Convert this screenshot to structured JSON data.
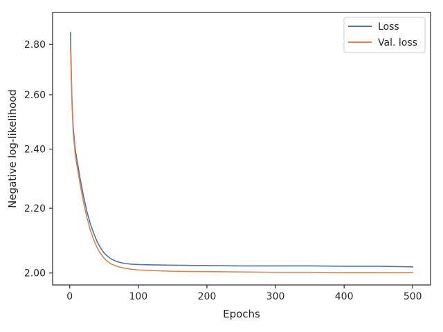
{
  "chart_data": {
    "type": "line",
    "title": "",
    "xlabel": "Epochs",
    "ylabel": "Negative log-likelihood",
    "xlim": [
      -25,
      526
    ],
    "ylim": [
      1.965,
      2.935
    ],
    "y_scale": "log",
    "grid": false,
    "legend_position": "top-right",
    "colors": {
      "Loss": "#4c72b0",
      "Val. loss": "#dd8452"
    },
    "x_ticks": [
      0,
      100,
      200,
      300,
      400,
      500
    ],
    "x_tick_labels": [
      "0",
      "100",
      "200",
      "300",
      "400",
      "500"
    ],
    "y_ticks": [
      2.0,
      2.2,
      2.4,
      2.6,
      2.8
    ],
    "y_tick_labels": [
      "2.00",
      "2.20",
      "2.40",
      "2.60",
      "2.80"
    ],
    "series": [
      {
        "name": "Loss",
        "x": [
          1,
          3,
          5,
          8,
          10,
          15,
          20,
          25,
          30,
          35,
          40,
          45,
          50,
          55,
          60,
          70,
          80,
          90,
          100,
          120,
          150,
          200,
          250,
          300,
          350,
          400,
          450,
          500
        ],
        "y": [
          2.85,
          2.6,
          2.48,
          2.4,
          2.37,
          2.3,
          2.24,
          2.19,
          2.15,
          2.12,
          2.094,
          2.075,
          2.06,
          2.05,
          2.042,
          2.033,
          2.028,
          2.026,
          2.025,
          2.024,
          2.023,
          2.022,
          2.021,
          2.021,
          2.021,
          2.02,
          2.02,
          2.018
        ]
      },
      {
        "name": "Val. loss",
        "x": [
          1,
          3,
          5,
          8,
          10,
          15,
          20,
          25,
          30,
          35,
          40,
          45,
          50,
          55,
          60,
          70,
          80,
          90,
          100,
          120,
          150,
          200,
          250,
          300,
          350,
          400,
          450,
          500
        ],
        "y": [
          2.8,
          2.58,
          2.46,
          2.38,
          2.35,
          2.28,
          2.22,
          2.17,
          2.13,
          2.1,
          2.075,
          2.058,
          2.044,
          2.034,
          2.027,
          2.019,
          2.014,
          2.011,
          2.009,
          2.007,
          2.005,
          2.004,
          2.003,
          2.002,
          2.002,
          2.001,
          2.001,
          2.001
        ]
      }
    ]
  }
}
